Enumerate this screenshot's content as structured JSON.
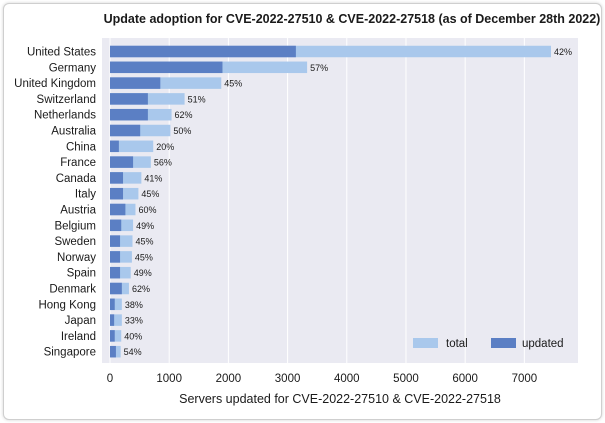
{
  "chart_data": {
    "type": "bar",
    "orientation": "horizontal",
    "stacking": "overlay",
    "title": "Update adoption for CVE-2022-27510 & CVE-2022-27518 (as of December 28th 2022)",
    "xlabel": "Servers updated for CVE-2022-27510 & CVE-2022-27518",
    "ylabel": "",
    "xlim": [
      0,
      7700
    ],
    "xticks": [
      0,
      1000,
      2000,
      3000,
      4000,
      5000,
      6000,
      7000
    ],
    "grid": true,
    "legend_position": "lower-right",
    "categories": [
      "United States",
      "Germany",
      "United Kingdom",
      "Switzerland",
      "Netherlands",
      "Australia",
      "China",
      "France",
      "Canada",
      "Italy",
      "Austria",
      "Belgium",
      "Sweden",
      "Norway",
      "Spain",
      "Denmark",
      "Hong Kong",
      "Japan",
      "Ireland",
      "Singapore"
    ],
    "series": [
      {
        "name": "total",
        "color": "#a9c8ec",
        "values": [
          7450,
          3330,
          1880,
          1260,
          1040,
          1020,
          730,
          690,
          530,
          480,
          430,
          390,
          380,
          370,
          350,
          320,
          200,
          200,
          190,
          180
        ]
      },
      {
        "name": "updated",
        "color": "#5b7fc4",
        "values": [
          3140,
          1900,
          850,
          640,
          640,
          510,
          150,
          390,
          220,
          220,
          260,
          190,
          170,
          170,
          170,
          200,
          80,
          70,
          80,
          100
        ]
      }
    ],
    "labels": [
      "42%",
      "57%",
      "45%",
      "51%",
      "62%",
      "50%",
      "20%",
      "56%",
      "41%",
      "45%",
      "60%",
      "49%",
      "45%",
      "45%",
      "49%",
      "62%",
      "38%",
      "33%",
      "40%",
      "54%"
    ]
  }
}
